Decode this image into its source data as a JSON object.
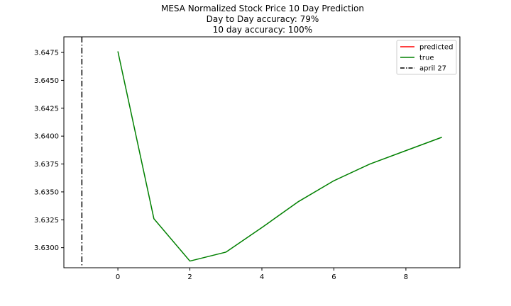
{
  "chart_data": {
    "type": "line",
    "title_lines": [
      "MESA Normalized Stock Price 10 Day Prediction",
      "Day to Day accuracy: 79%",
      "10 day accuracy: 100%"
    ],
    "xlabel": "",
    "ylabel": "",
    "xlim": [
      -1.5,
      9.5
    ],
    "ylim": [
      3.6282,
      3.6489
    ],
    "x_ticks": [
      0,
      2,
      4,
      6,
      8
    ],
    "x_tick_labels": [
      "0",
      "2",
      "4",
      "6",
      "8"
    ],
    "y_ticks": [
      3.63,
      3.6325,
      3.635,
      3.6375,
      3.64,
      3.6425,
      3.645,
      3.6475
    ],
    "y_tick_labels": [
      "3.6300",
      "3.6325",
      "3.6350",
      "3.6375",
      "3.6400",
      "3.6425",
      "3.6450",
      "3.6475"
    ],
    "series": [
      {
        "name": "predicted",
        "color": "#ff0000",
        "x": [],
        "values": []
      },
      {
        "name": "true",
        "color": "#008000",
        "x": [
          0,
          1,
          2,
          3,
          4,
          5,
          6,
          7,
          8,
          9
        ],
        "values": [
          3.6476,
          3.6326,
          3.6288,
          3.6296,
          3.6318,
          3.6341,
          3.636,
          3.6375,
          3.6387,
          3.6399
        ]
      }
    ],
    "vline": {
      "name": "april 27",
      "x": -1,
      "color": "#000000",
      "style": "dash-dot"
    },
    "legend": {
      "placement": "top-right",
      "entries": [
        "predicted",
        "true",
        "april 27"
      ]
    },
    "grid": false
  }
}
